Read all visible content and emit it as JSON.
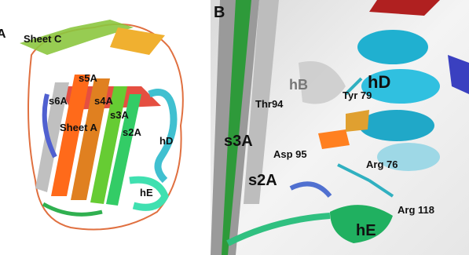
{
  "panels": [
    {
      "label": "A",
      "annotations": [
        "Sheet C",
        "s5A",
        "s6A",
        "s4A",
        "s3A",
        "Sheet A",
        "s2A",
        "hD",
        "hE"
      ]
    },
    {
      "label": "B",
      "annotations": [
        "hB",
        "hD",
        "Tyr 79",
        "Thr94",
        "s3A",
        "Asp 95",
        "Arg 76",
        "s2A",
        "Arg 118",
        "hE"
      ]
    }
  ]
}
